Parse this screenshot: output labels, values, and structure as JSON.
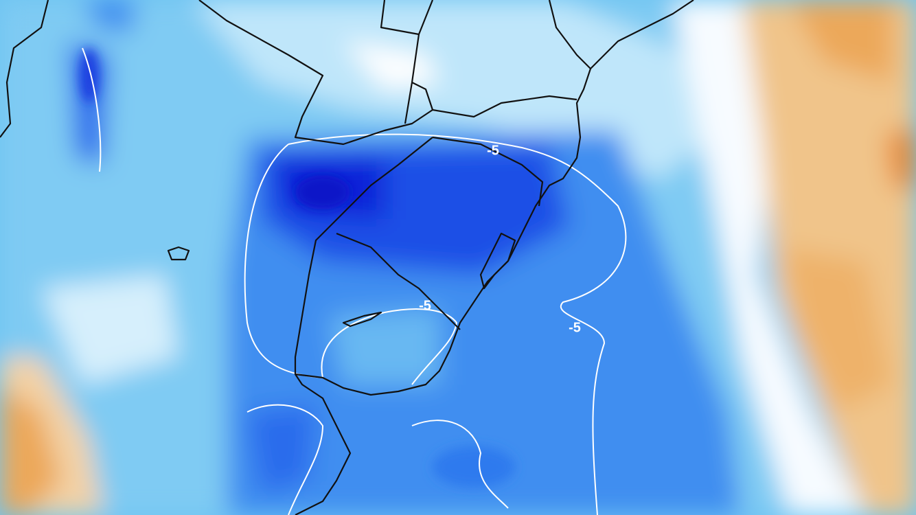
{
  "contour_labels": [
    {
      "text": "-5"
    },
    {
      "text": "-5"
    },
    {
      "text": "-5"
    }
  ]
}
